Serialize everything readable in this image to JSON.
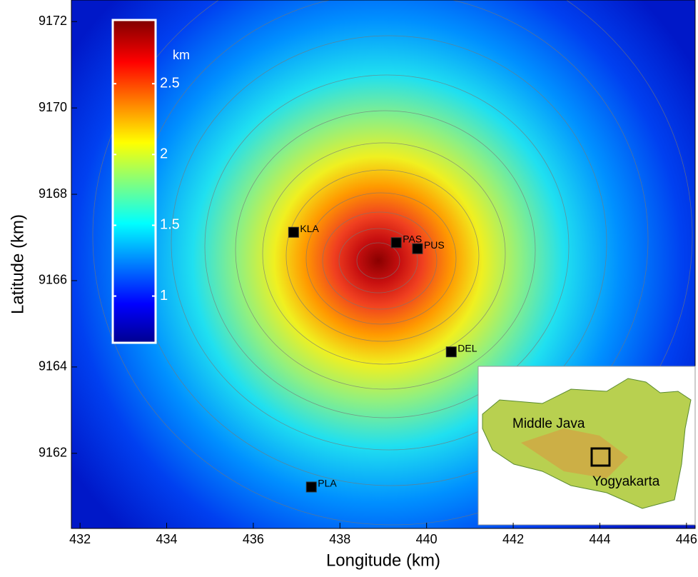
{
  "chart_data": {
    "type": "map",
    "xlabel": "Longitude (km)",
    "ylabel": "Latitude (km)",
    "xlim": [
      431.8,
      446.2
    ],
    "ylim": [
      9160.26,
      9172.5
    ],
    "xticks": [
      432,
      434,
      436,
      438,
      440,
      442,
      444,
      446
    ],
    "yticks": [
      9162,
      9164,
      9166,
      9168,
      9170,
      9172
    ],
    "stations": [
      {
        "name": "KLA",
        "x": 436.93,
        "y": 9167.12
      },
      {
        "name": "PAS",
        "x": 439.3,
        "y": 9166.88
      },
      {
        "name": "PUS",
        "x": 439.79,
        "y": 9166.74
      },
      {
        "name": "DEL",
        "x": 440.57,
        "y": 9164.35
      },
      {
        "name": "PLA",
        "x": 437.34,
        "y": 9161.22
      }
    ],
    "colorbar": {
      "label": "km",
      "lim": [
        0.67,
        2.95
      ],
      "ticks": [
        1,
        1.5,
        2,
        2.5
      ]
    },
    "inset": {
      "labels": [
        "Middle Java",
        "Yogyakarta"
      ]
    }
  }
}
